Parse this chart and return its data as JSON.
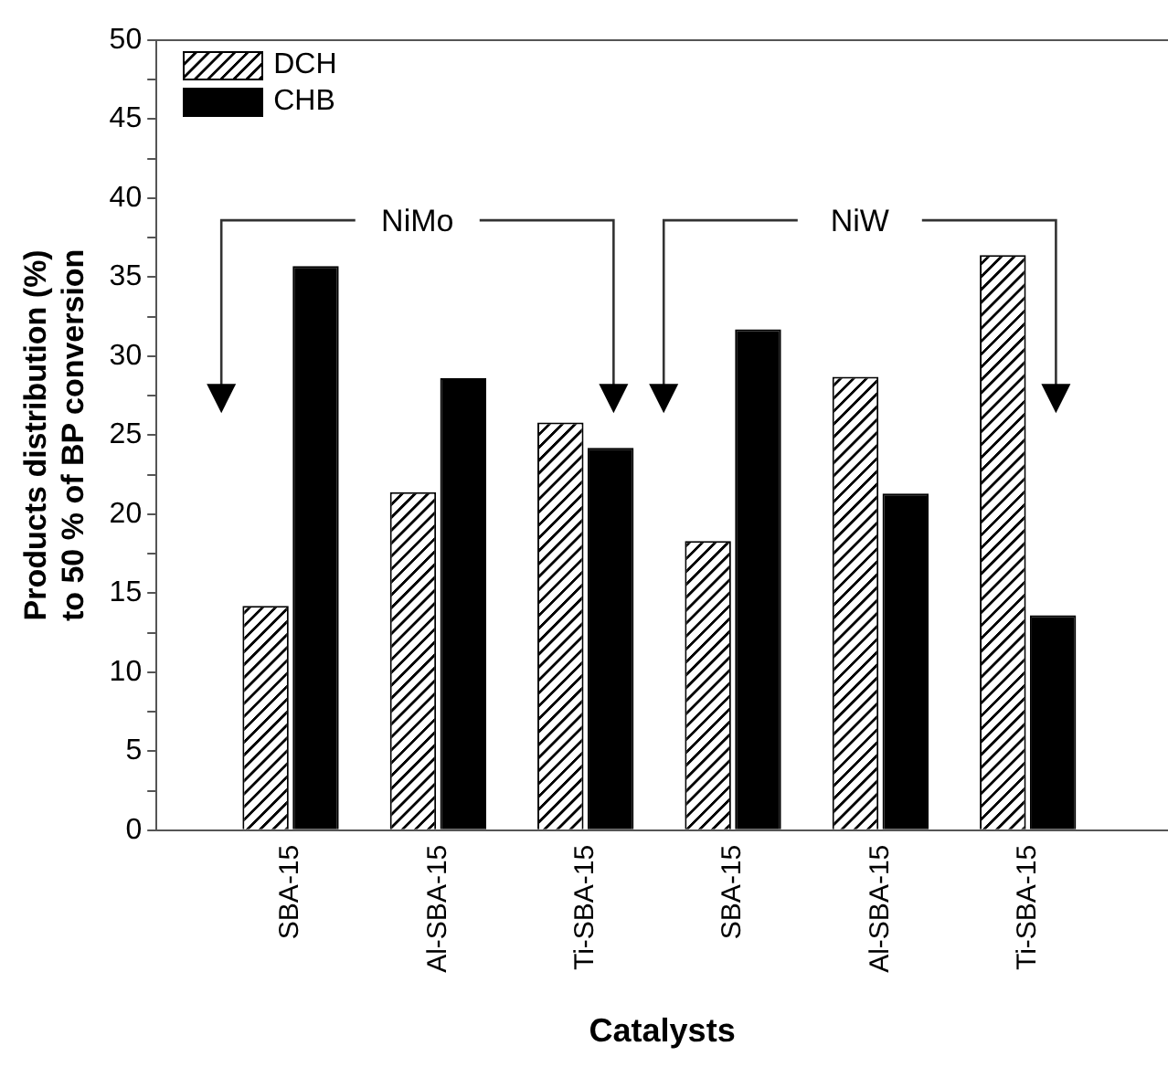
{
  "chart_data": {
    "type": "bar",
    "xlabel": "Catalysts",
    "ylabel": "Products distribution (%)\nto 50 % of BP conversion",
    "categories": [
      "SBA-15",
      "Al-SBA-15",
      "Ti-SBA-15",
      "SBA-15",
      "Al-SBA-15",
      "Ti-SBA-15"
    ],
    "series": [
      {
        "name": "DCH",
        "color": "#ffffff",
        "values": [
          14.2,
          21.4,
          25.8,
          18.3,
          28.7,
          36.4
        ]
      },
      {
        "name": "CHB",
        "color": "#000000",
        "values": [
          35.7,
          28.6,
          24.2,
          31.7,
          21.3,
          13.6
        ]
      }
    ],
    "ylim": [
      0,
      50
    ],
    "yticks": [
      0,
      {
        "value": 2.5,
        "label": null
      },
      5,
      {
        "value": 7.5,
        "label": null
      },
      10,
      {
        "value": 12.5,
        "label": null
      },
      15,
      {
        "value": 17.5,
        "label": null
      },
      20,
      {
        "value": 22.5,
        "label": null
      },
      25,
      {
        "value": 27.5,
        "label": null
      },
      30,
      {
        "value": 32.5,
        "label": null
      },
      35,
      {
        "value": 37.5,
        "label": null
      },
      40,
      {
        "value": 42.5,
        "label": null
      },
      45,
      {
        "value": 47.5,
        "label": null
      },
      50
    ],
    "annotations": [
      "NiMo",
      "NiW"
    ],
    "grid": false,
    "legend": "top left"
  }
}
